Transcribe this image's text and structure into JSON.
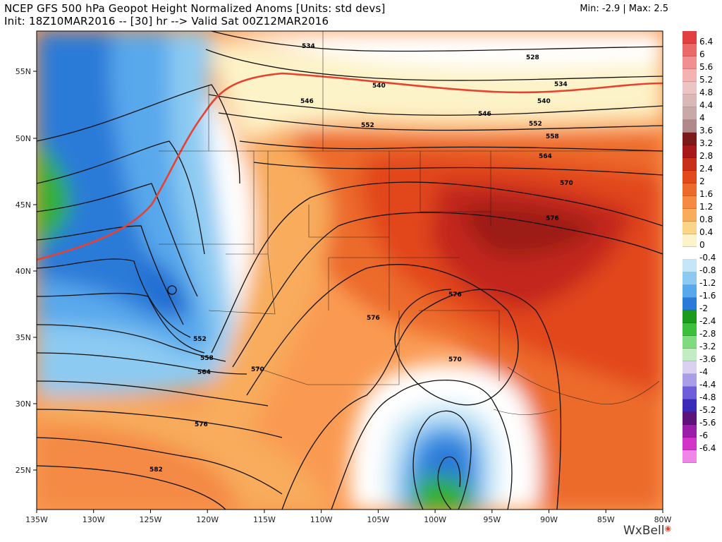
{
  "header": {
    "title_line1": "NCEP GFS 500 hPa Geopot Height Normalized Anoms [Units: std devs]",
    "title_line2": "Init: 18Z10MAR2016 -- [30] hr --> Valid Sat 00Z12MAR2016",
    "minmax": "Min: -2.9 | Max: 2.5"
  },
  "axes": {
    "lon_labels": [
      "135W",
      "130W",
      "125W",
      "120W",
      "115W",
      "110W",
      "105W",
      "100W",
      "95W",
      "90W",
      "85W",
      "80W"
    ],
    "lat_labels": [
      "55N",
      "50N",
      "45N",
      "40N",
      "35N",
      "30N",
      "25N"
    ]
  },
  "contour_labels": [
    "534",
    "528",
    "534",
    "540",
    "540",
    "546",
    "546",
    "552",
    "552",
    "558",
    "564",
    "570",
    "576",
    "576",
    "576",
    "570",
    "570",
    "564",
    "558",
    "552",
    "576",
    "582"
  ],
  "colorbar": {
    "labels": [
      "6.4",
      "6",
      "5.6",
      "5.2",
      "4.8",
      "4.4",
      "4",
      "3.6",
      "3.2",
      "2.8",
      "2.4",
      "2",
      "1.6",
      "1.2",
      "0.8",
      "0.4",
      "0",
      "-0.4",
      "-0.8",
      "-1.2",
      "-1.6",
      "-2",
      "-2.4",
      "-2.8",
      "-3.2",
      "-3.6",
      "-4",
      "-4.4",
      "-4.8",
      "-5.2",
      "-5.6",
      "-6",
      "-6.4"
    ],
    "colors": [
      "#e04040",
      "#ea6a6a",
      "#f09090",
      "#f4b2b2",
      "#ecc4c4",
      "#dab8b8",
      "#c8a8a8",
      "#b08a8a",
      "#7a1a1a",
      "#a81a1a",
      "#c8301c",
      "#e24a1c",
      "#ec6a2c",
      "#f48a44",
      "#f8ac5c",
      "#fbd488",
      "#fdf3c8",
      "#ffffff",
      "#c4e6f6",
      "#8ccaf2",
      "#58a8ec",
      "#2a7ad8",
      "#1c9a1c",
      "#3cc03c",
      "#80da80",
      "#c4ecc4",
      "#dad0f0",
      "#aa9ee6",
      "#6e5ed8",
      "#3c2ab8",
      "#5c1478",
      "#9a1eaa",
      "#d234c8",
      "#f086e8"
    ]
  },
  "logo": {
    "text": "WxBell"
  }
}
